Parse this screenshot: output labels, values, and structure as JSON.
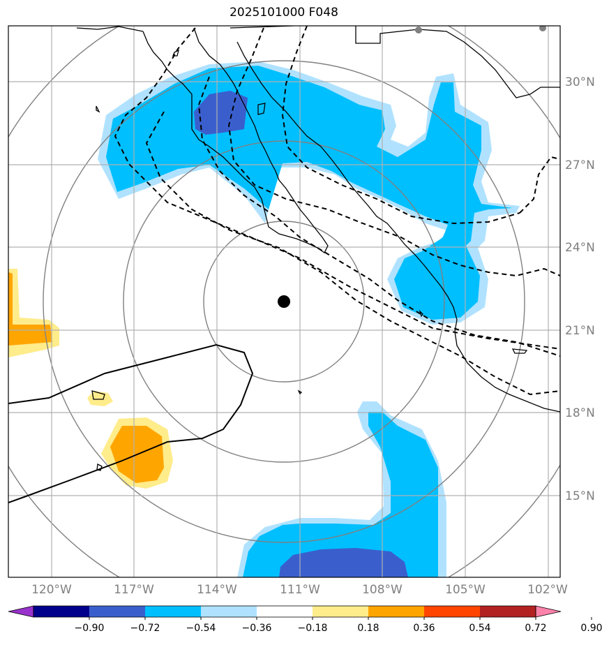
{
  "title": "2025101000 F048",
  "map": {
    "lon_ticks": [
      "120°W",
      "117°W",
      "114°W",
      "111°W",
      "108°W",
      "105°W",
      "102°W"
    ],
    "lat_ticks": [
      "30°N",
      "27°N",
      "24°N",
      "21°N",
      "18°N",
      "15°N"
    ]
  },
  "colorbar": {
    "levels": [
      "−0.90",
      "−0.72",
      "−0.54",
      "−0.36",
      "−0.18",
      "0.18",
      "0.36",
      "0.54",
      "0.72",
      "0.90"
    ],
    "colors": [
      "#9932cc",
      "#00008b",
      "#3a5fcd",
      "#00bfff",
      "#b0e2ff",
      "#ffffff",
      "#ffec8b",
      "#ffa500",
      "#ff4500",
      "#b22222",
      "#ff82ab"
    ]
  }
}
